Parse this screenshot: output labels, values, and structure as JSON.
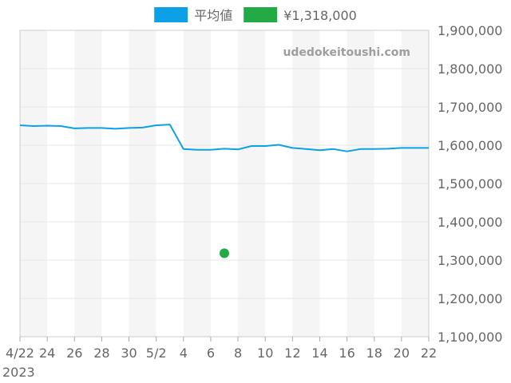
{
  "chart_data": {
    "type": "line",
    "title": "",
    "xlabel": "",
    "ylabel": "",
    "watermark": "udedokeitoushi.com",
    "legend": {
      "placement": "top",
      "entries": [
        {
          "label": "平均値",
          "color": "#0ca0e6"
        },
        {
          "label": "¥1,318,000",
          "color": "#22aa44"
        }
      ]
    },
    "ylim": [
      1100000,
      1900000
    ],
    "y_ticks": [
      {
        "value": 1100000,
        "label": "1,100,000"
      },
      {
        "value": 1200000,
        "label": "1,200,000"
      },
      {
        "value": 1300000,
        "label": "1,300,000"
      },
      {
        "value": 1400000,
        "label": "1,400,000"
      },
      {
        "value": 1500000,
        "label": "1,500,000"
      },
      {
        "value": 1600000,
        "label": "1,600,000"
      },
      {
        "value": 1700000,
        "label": "1,700,000"
      },
      {
        "value": 1800000,
        "label": "1,800,000"
      },
      {
        "value": 1900000,
        "label": "1,900,000"
      }
    ],
    "xlim": [
      "2023-04-22",
      "2023-05-22"
    ],
    "x_ticks": [
      {
        "date": "2023-04-22",
        "label": "4/22"
      },
      {
        "date": "2023-04-24",
        "label": "24"
      },
      {
        "date": "2023-04-26",
        "label": "26"
      },
      {
        "date": "2023-04-28",
        "label": "28"
      },
      {
        "date": "2023-04-30",
        "label": "30"
      },
      {
        "date": "2023-05-02",
        "label": "5/2"
      },
      {
        "date": "2023-05-04",
        "label": "4"
      },
      {
        "date": "2023-05-06",
        "label": "6"
      },
      {
        "date": "2023-05-08",
        "label": "8"
      },
      {
        "date": "2023-05-10",
        "label": "10"
      },
      {
        "date": "2023-05-12",
        "label": "12"
      },
      {
        "date": "2023-05-14",
        "label": "14"
      },
      {
        "date": "2023-05-16",
        "label": "16"
      },
      {
        "date": "2023-05-18",
        "label": "18"
      },
      {
        "date": "2023-05-20",
        "label": "20"
      },
      {
        "date": "2023-05-22",
        "label": "22"
      }
    ],
    "x_year_label": "2023",
    "grid": true,
    "band_colors": [
      "#f5f5f5",
      "#ffffff"
    ],
    "series": [
      {
        "name": "平均値",
        "color": "#0ca0e6",
        "points": [
          [
            "2023-04-22",
            1652000
          ],
          [
            "2023-04-23",
            1650000
          ],
          [
            "2023-04-24",
            1651000
          ],
          [
            "2023-04-25",
            1650000
          ],
          [
            "2023-04-26",
            1644000
          ],
          [
            "2023-04-27",
            1645000
          ],
          [
            "2023-04-28",
            1645000
          ],
          [
            "2023-04-29",
            1643000
          ],
          [
            "2023-04-30",
            1645000
          ],
          [
            "2023-05-01",
            1646000
          ],
          [
            "2023-05-02",
            1652000
          ],
          [
            "2023-05-03",
            1654000
          ],
          [
            "2023-05-04",
            1590000
          ],
          [
            "2023-05-05",
            1588000
          ],
          [
            "2023-05-06",
            1588000
          ],
          [
            "2023-05-07",
            1591000
          ],
          [
            "2023-05-08",
            1589000
          ],
          [
            "2023-05-09",
            1598000
          ],
          [
            "2023-05-10",
            1598000
          ],
          [
            "2023-05-11",
            1601000
          ],
          [
            "2023-05-12",
            1593000
          ],
          [
            "2023-05-13",
            1590000
          ],
          [
            "2023-05-14",
            1587000
          ],
          [
            "2023-05-15",
            1590000
          ],
          [
            "2023-05-16",
            1584000
          ],
          [
            "2023-05-17",
            1590000
          ],
          [
            "2023-05-18",
            1590000
          ],
          [
            "2023-05-19",
            1591000
          ],
          [
            "2023-05-20",
            1593000
          ],
          [
            "2023-05-21",
            1593000
          ],
          [
            "2023-05-22",
            1593000
          ]
        ]
      },
      {
        "name": "¥1,318,000",
        "color": "#22aa44",
        "type": "scatter",
        "points": [
          [
            "2023-05-07",
            1318000
          ]
        ]
      }
    ]
  }
}
